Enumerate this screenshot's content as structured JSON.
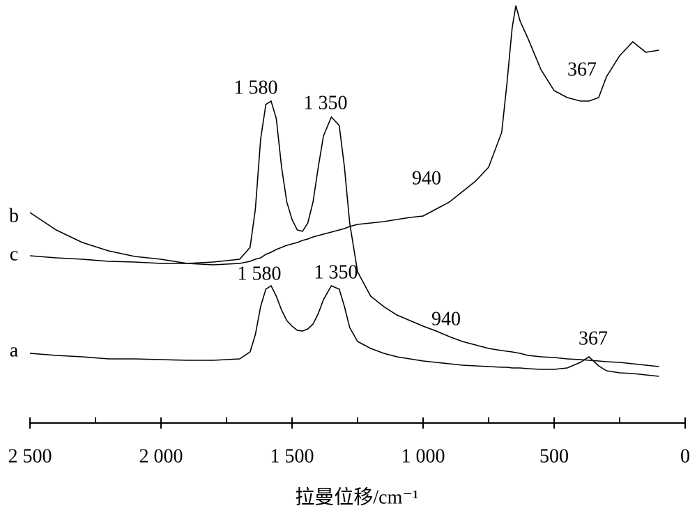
{
  "chart_data": {
    "type": "line",
    "xlabel": "拉曼位移/cm⁻¹",
    "x": [
      2500,
      2400,
      2300,
      2200,
      2100,
      2000,
      1900,
      1800,
      1700,
      1660,
      1640,
      1620,
      1600,
      1580,
      1560,
      1540,
      1520,
      1500,
      1480,
      1460,
      1440,
      1420,
      1400,
      1380,
      1350,
      1320,
      1300,
      1280,
      1250,
      1200,
      1150,
      1100,
      1050,
      1000,
      950,
      900,
      850,
      800,
      750,
      700,
      680,
      660,
      646,
      630,
      600,
      550,
      500,
      450,
      400,
      367,
      330,
      300,
      250,
      200,
      150,
      100
    ],
    "series": [
      {
        "name": "a",
        "color": "#000000",
        "values": [
          100,
          97,
          95,
          92,
          92,
          91,
          90,
          90,
          92,
          102,
          127,
          167,
          192,
          197,
          182,
          162,
          147,
          139,
          133,
          132,
          135,
          142,
          157,
          177,
          197,
          192,
          167,
          137,
          117,
          107,
          100,
          95,
          92,
          89,
          87,
          85,
          83,
          82,
          81,
          80,
          80,
          79,
          79,
          79,
          78,
          77,
          77,
          79,
          87,
          95,
          82,
          75,
          72,
          71,
          69,
          67
        ]
      },
      {
        "name": "b",
        "color": "#000000",
        "values": [
          302,
          277,
          259,
          247,
          239,
          235,
          229,
          227,
          229,
          232,
          235,
          237,
          242,
          245,
          249,
          252,
          255,
          257,
          259,
          262,
          264,
          267,
          269,
          271,
          274,
          277,
          279,
          282,
          285,
          287,
          289,
          292,
          295,
          297,
          307,
          317,
          332,
          347,
          367,
          417,
          487,
          567,
          599,
          577,
          552,
          507,
          477,
          467,
          462,
          462,
          467,
          497,
          527,
          547,
          532,
          535
        ]
      },
      {
        "name": "c",
        "color": "#000000",
        "values": [
          240,
          237,
          235,
          232,
          231,
          229,
          229,
          231,
          235,
          252,
          307,
          407,
          457,
          462,
          437,
          367,
          317,
          292,
          277,
          275,
          287,
          317,
          367,
          412,
          439,
          427,
          367,
          287,
          217,
          182,
          167,
          155,
          147,
          139,
          132,
          124,
          117,
          112,
          107,
          104,
          103,
          102,
          101,
          100,
          97,
          95,
          94,
          92,
          91,
          90,
          89,
          88,
          87,
          85,
          83,
          81
        ]
      }
    ],
    "annotations": [
      "1 580",
      "1 350",
      "940",
      "367",
      "1 580",
      "1 350",
      "940",
      "367"
    ],
    "xlim": [
      2500,
      0
    ],
    "xticks": [
      {
        "value": 2500,
        "label": "2 500"
      },
      {
        "value": 2000,
        "label": "2 000"
      },
      {
        "value": 1500,
        "label": "1 500"
      },
      {
        "value": 1000,
        "label": "1 000"
      },
      500,
      0
    ],
    "xminorticks": [
      2250,
      1750,
      1250,
      750,
      250
    ],
    "ylim": [
      0,
      607
    ]
  }
}
